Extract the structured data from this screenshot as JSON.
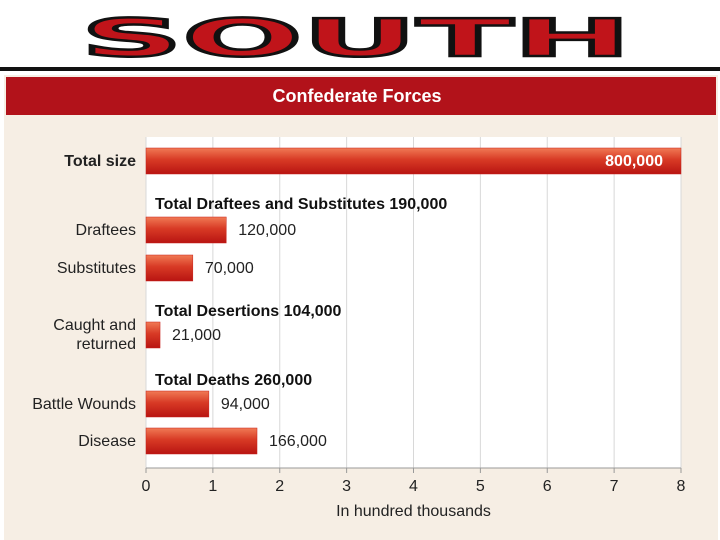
{
  "page_title": "SOUTH",
  "chart_data": {
    "type": "bar",
    "orientation": "horizontal",
    "title": "Confederate Forces",
    "categories": [
      "Total size",
      "Draftees",
      "Substitutes",
      "Caught and returned",
      "Battle Wounds",
      "Disease"
    ],
    "values": [
      8,
      1.2,
      0.7,
      0.21,
      0.94,
      1.66
    ],
    "value_labels": [
      "800,000",
      "120,000",
      "70,000",
      "21,000",
      "94,000",
      "166,000"
    ],
    "annotations": [
      "Total Draftees and Substitutes 190,000",
      "Total Desertions 104,000",
      "Total Deaths 260,000"
    ],
    "xlabel": "In hundred thousands",
    "xlim": [
      0,
      8
    ],
    "xticks": [
      0,
      1,
      2,
      3,
      4,
      5,
      6,
      7,
      8
    ],
    "color": "#c8201a",
    "grid": true
  }
}
